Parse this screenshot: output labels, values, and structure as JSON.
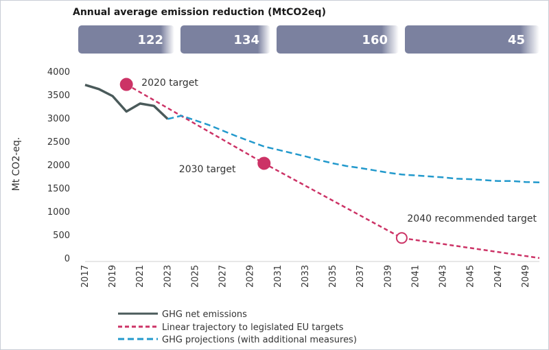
{
  "band": {
    "title": "Annual average emission reduction (MtCO2eq)",
    "values": [
      "122",
      "134",
      "160",
      "45"
    ]
  },
  "chart_data": {
    "type": "line",
    "ylabel": "Mt CO2-eq.",
    "xlim": [
      2017,
      2050
    ],
    "ylim": [
      0,
      4000
    ],
    "x_ticks": [
      2017,
      2019,
      2021,
      2023,
      2025,
      2027,
      2029,
      2031,
      2033,
      2035,
      2037,
      2039,
      2041,
      2043,
      2045,
      2047,
      2049
    ],
    "y_ticks": [
      0,
      500,
      1000,
      1500,
      2000,
      2500,
      3000,
      3500,
      4000
    ],
    "grid": false,
    "legend_position": "bottom",
    "series": [
      {
        "name": "GHG net emissions",
        "style": "solid",
        "color": "#4a5a5a",
        "x": [
          2017,
          2018,
          2019,
          2020,
          2021,
          2022,
          2023
        ],
        "y": [
          3710,
          3620,
          3470,
          3140,
          3310,
          3260,
          2980
        ]
      },
      {
        "name": "Linear trajectory to legislated EU targets",
        "style": "dashed",
        "color": "#cc3366",
        "x": [
          2020,
          2030,
          2040,
          2050
        ],
        "y": [
          3720,
          2030,
          430,
          0
        ]
      },
      {
        "name": "GHG projections (with additional measures)",
        "style": "dashed",
        "color": "#2299cc",
        "x": [
          2023,
          2024,
          2025,
          2026,
          2027,
          2028,
          2029,
          2030,
          2031,
          2032,
          2033,
          2034,
          2035,
          2036,
          2037,
          2038,
          2039,
          2040,
          2041,
          2042,
          2043,
          2044,
          2045,
          2046,
          2047,
          2048,
          2049,
          2050
        ],
        "y": [
          2980,
          3050,
          2950,
          2850,
          2730,
          2610,
          2500,
          2390,
          2320,
          2250,
          2180,
          2100,
          2030,
          1970,
          1930,
          1880,
          1830,
          1790,
          1770,
          1750,
          1730,
          1700,
          1690,
          1670,
          1650,
          1650,
          1630,
          1620
        ]
      }
    ],
    "markers": [
      {
        "label": "2020 target",
        "x": 2020,
        "y": 3720,
        "style": "filled"
      },
      {
        "label": "2030 target",
        "x": 2030,
        "y": 2030,
        "style": "filled"
      },
      {
        "label": "2040 recommended target",
        "x": 2040,
        "y": 430,
        "style": "hollow"
      }
    ]
  },
  "colors": {
    "band_fill": "#7b819f",
    "net_emissions": "#4a5a5a",
    "trajectory": "#cc3366",
    "projection": "#2299cc"
  }
}
